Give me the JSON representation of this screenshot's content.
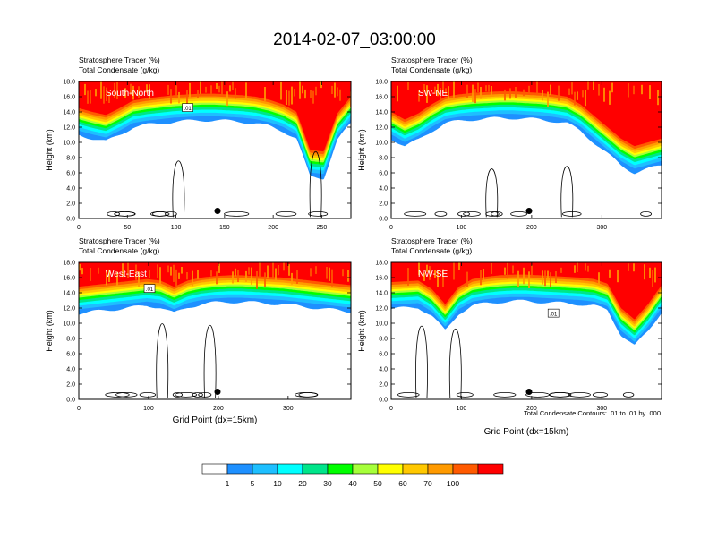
{
  "figure": {
    "title": "2014-02-07_03:00:00",
    "contour_note": "Total Condensate Contours: .01 to .01 by .000"
  },
  "colorbar": {
    "labels": [
      "1",
      "5",
      "10",
      "20",
      "30",
      "40",
      "50",
      "60",
      "70",
      "100"
    ],
    "colors": [
      "#ffffff",
      "#1e90ff",
      "#1ebfff",
      "#00ffff",
      "#00e58a",
      "#00ff00",
      "#a6ff3a",
      "#ffff00",
      "#ffc800",
      "#ff9a00",
      "#ff5a00",
      "#ff0000"
    ]
  },
  "chart_data": [
    {
      "type": "heatmap",
      "panel_label": "South-North",
      "title": "Stratosphere Tracer   (%)",
      "subtitle": "Total Condensate   (g/kg)",
      "xlabel": "",
      "ylabel": "Height (km)",
      "xlim": [
        0,
        280
      ],
      "ylim": [
        0,
        18
      ],
      "xticks": [
        "0",
        "50",
        "100",
        "150",
        "200",
        "250"
      ],
      "xtick_values": [
        0,
        50,
        100,
        150,
        200,
        250
      ],
      "yticks": [
        "0.0",
        "2.0",
        "4.0",
        "6.0",
        "8.0",
        "10.0",
        "12.0",
        "14.0",
        "16.0",
        "18.0"
      ],
      "contour_labels": [
        ".01"
      ],
      "base_height_km": [
        14.5,
        14.0,
        13.6,
        14.5,
        15.5,
        15.8,
        16.0,
        16.2,
        16.3,
        16.4,
        16.4,
        16.3,
        16.2,
        16.0,
        15.6,
        15.0,
        14.0,
        9.0,
        8.8,
        13.8,
        16.0
      ]
    },
    {
      "type": "heatmap",
      "panel_label": "SW-NE",
      "title": "Stratosphere Tracer   (%)",
      "subtitle": "Total Condensate   (g/kg)",
      "xlabel": "",
      "ylabel": "Height (km)",
      "xlim": [
        0,
        385
      ],
      "ylim": [
        0,
        18
      ],
      "xticks": [
        "0",
        "100",
        "200",
        "300"
      ],
      "xtick_values": [
        0,
        100,
        200,
        300
      ],
      "yticks": [
        "0.0",
        "2.0",
        "4.0",
        "6.0",
        "8.0",
        "10.0",
        "12.0",
        "14.0",
        "16.0",
        "18.0"
      ],
      "contour_labels": [],
      "base_height_km": [
        14.0,
        13.0,
        13.8,
        15.0,
        16.0,
        16.3,
        16.5,
        16.6,
        16.7,
        16.7,
        16.6,
        16.5,
        16.3,
        16.0,
        15.0,
        13.5,
        12.0,
        10.5,
        9.5,
        10.0,
        10.5
      ]
    },
    {
      "type": "heatmap",
      "panel_label": "West-East",
      "title": "Stratosphere Tracer   (%)",
      "subtitle": "Total Condensate   (g/kg)",
      "xlabel": "Grid Point (dx=15km)",
      "ylabel": "Height (km)",
      "xlim": [
        0,
        390
      ],
      "ylim": [
        0,
        18
      ],
      "xticks": [
        "0",
        "100",
        "200",
        "300"
      ],
      "xtick_values": [
        0,
        100,
        200,
        300
      ],
      "yticks": [
        "0.0",
        "2.0",
        "4.0",
        "6.0",
        "8.0",
        "10.0",
        "12.0",
        "14.0",
        "16.0",
        "18.0"
      ],
      "contour_labels": [
        ".01"
      ],
      "base_height_km": [
        14.8,
        15.0,
        15.2,
        15.4,
        15.6,
        15.8,
        15.6,
        14.8,
        15.6,
        16.0,
        16.2,
        16.3,
        16.3,
        16.2,
        16.1,
        16.0,
        15.8,
        15.6,
        15.4,
        15.2,
        15.0
      ]
    },
    {
      "type": "heatmap",
      "panel_label": "NW-SE",
      "title": "Stratosphere Tracer   (%)",
      "subtitle": "Total Condensate   (g/kg)",
      "xlabel": "Grid Point (dx=15km)",
      "ylabel": "Height (km)",
      "xlim": [
        0,
        385
      ],
      "ylim": [
        0,
        18
      ],
      "xticks": [
        "0",
        "100",
        "200",
        "300"
      ],
      "xtick_values": [
        0,
        100,
        200,
        300
      ],
      "yticks": [
        "0.0",
        "2.0",
        "4.0",
        "6.0",
        "8.0",
        "10.0",
        "12.0",
        "14.0",
        "16.0",
        "18.0"
      ],
      "contour_labels": [
        ".01"
      ],
      "base_height_km": [
        15.4,
        15.5,
        15.6,
        14.5,
        12.5,
        14.8,
        15.8,
        16.1,
        16.3,
        16.4,
        16.4,
        16.3,
        16.2,
        16.1,
        16.0,
        15.8,
        15.2,
        12.0,
        10.5,
        12.5,
        15.0
      ]
    }
  ]
}
